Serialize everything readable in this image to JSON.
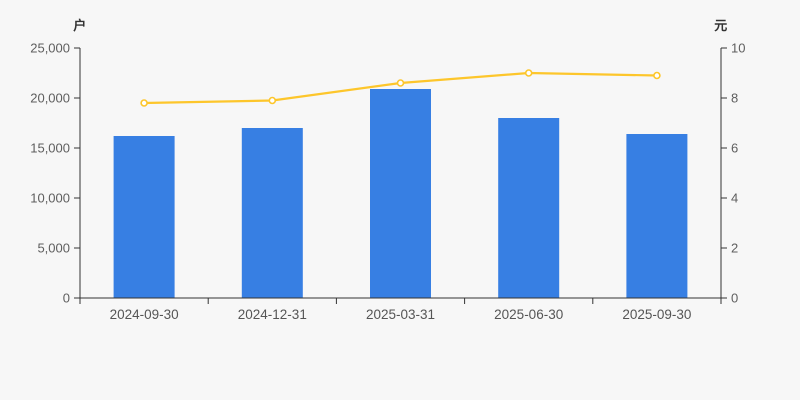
{
  "page": {
    "background_color": "#f7f7f7"
  },
  "chart_data": {
    "type": "combo",
    "subtype": [
      "bar",
      "line"
    ],
    "categories": [
      "2024-09-30",
      "2024-12-31",
      "2025-03-31",
      "2025-06-30",
      "2025-09-30"
    ],
    "series": [
      {
        "name": "bar-series",
        "type": "bar",
        "axis": "left",
        "values": [
          16200,
          17000,
          20900,
          18000,
          16400
        ],
        "color": "#377FE3"
      },
      {
        "name": "line-series",
        "type": "line",
        "axis": "right",
        "values": [
          7.8,
          7.9,
          8.6,
          9.0,
          8.9
        ],
        "color": "#FDC62B",
        "marker": "hollow-circle",
        "marker_fill": "#ffffff"
      }
    ],
    "left_axis": {
      "name": "户",
      "min": 0,
      "max": 25000,
      "tick_step": 5000,
      "tick_labels": [
        "0",
        "5,000",
        "10,000",
        "15,000",
        "20,000",
        "25,000"
      ]
    },
    "right_axis": {
      "name": "元",
      "min": 0,
      "max": 10,
      "tick_step": 2,
      "tick_labels": [
        "0",
        "2",
        "4",
        "6",
        "8",
        "10"
      ]
    },
    "grid": false,
    "legend": false,
    "title": "",
    "colors": {
      "axis_line": "#333333",
      "tick_text": "#5e5e5e",
      "category_text": "#555555"
    }
  }
}
